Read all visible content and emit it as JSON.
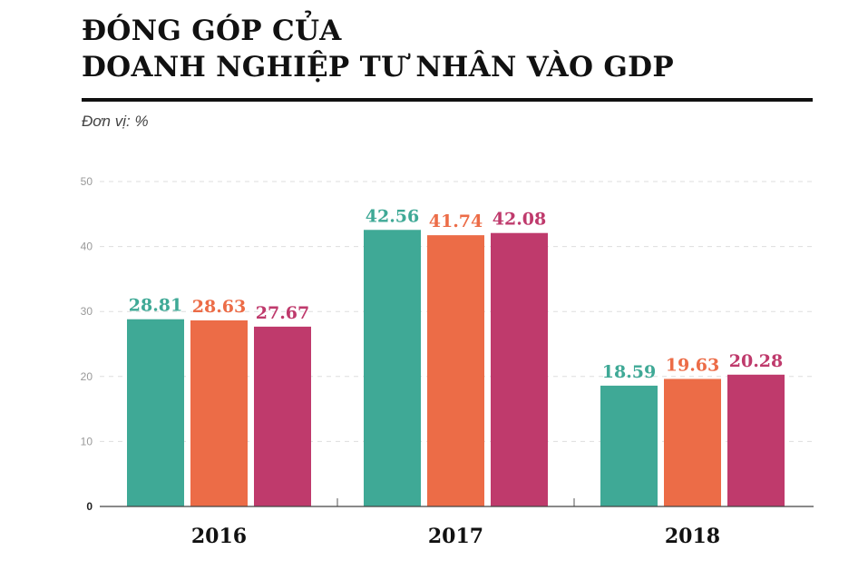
{
  "title_lines": [
    "ĐÓNG GÓP CỦA",
    "DOANH NGHIỆP TƯ NHÂN VÀO GDP"
  ],
  "unit": "Đơn vị: %",
  "chart_data": {
    "type": "bar",
    "categories": [
      "2016",
      "2017",
      "2018"
    ],
    "series": [
      {
        "values": [
          28.81,
          42.56,
          18.59
        ],
        "color": "#3fa996"
      },
      {
        "values": [
          28.63,
          41.74,
          19.63
        ],
        "color": "#ec6c47"
      },
      {
        "values": [
          27.67,
          42.08,
          20.28
        ],
        "color": "#bf3a6c"
      }
    ],
    "value_labels": [
      [
        "28.81",
        "42.56",
        "18.59"
      ],
      [
        "28.63",
        "41.74",
        "19.63"
      ],
      [
        "27.67",
        "42.08",
        "20.28"
      ]
    ],
    "yticks": [
      "0",
      "10",
      "20",
      "30",
      "40",
      "50"
    ],
    "ylim": [
      0,
      50
    ],
    "grid": "dashed horizontal",
    "legend": "none"
  }
}
